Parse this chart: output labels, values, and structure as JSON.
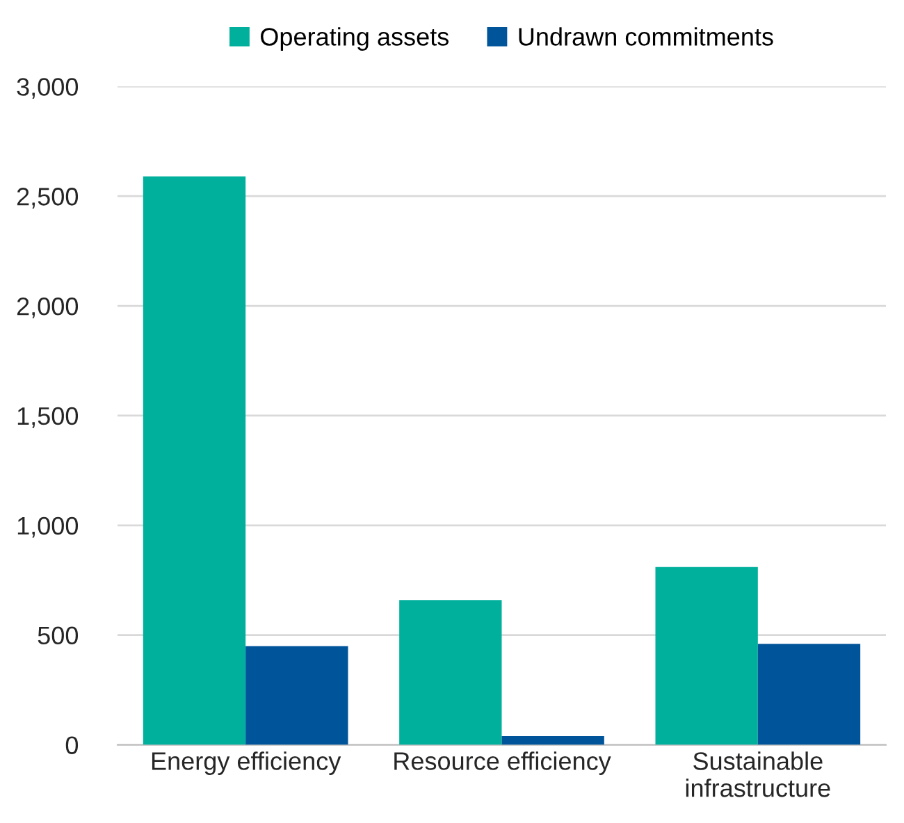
{
  "chart_data": {
    "type": "bar",
    "categories": [
      "Energy efficiency",
      "Resource efficiency",
      "Sustainable\ninfrastructure"
    ],
    "series": [
      {
        "name": "Operating assets",
        "color": "#00b09c",
        "values": [
          2590,
          660,
          810
        ]
      },
      {
        "name": "Undrawn commitments",
        "color": "#00559a",
        "values": [
          450,
          40,
          460
        ]
      }
    ],
    "ylim": [
      0,
      3000
    ],
    "yticks": [
      {
        "value": 0,
        "label": "0"
      },
      {
        "value": 500,
        "label": "500"
      },
      {
        "value": 1000,
        "label": "1,000"
      },
      {
        "value": 1500,
        "label": "1,500"
      },
      {
        "value": 2000,
        "label": "2,000"
      },
      {
        "value": 2500,
        "label": "2,500"
      },
      {
        "value": 3000,
        "label": "3,000"
      }
    ],
    "grid": "y",
    "legend": "top"
  }
}
